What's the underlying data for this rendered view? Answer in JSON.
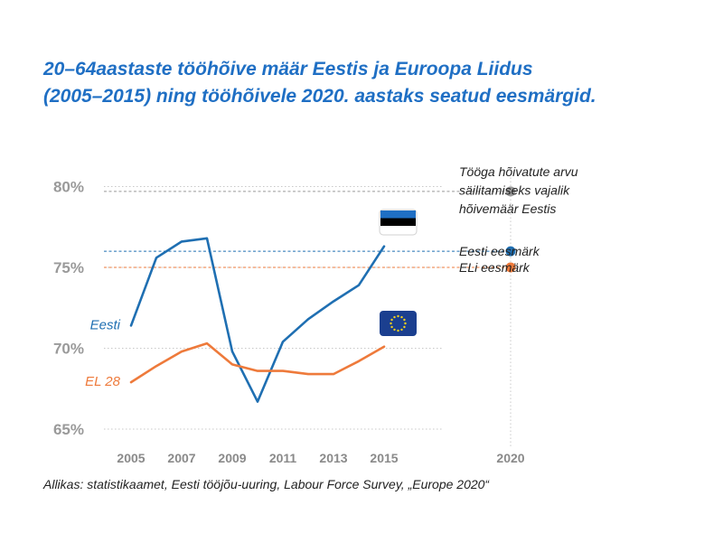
{
  "title_lines": [
    "20–64aastaste tööhõive määr Eestis ja Euroopa Liidus",
    "(2005–2015) ning tööhõivele 2020. aastaks seatud eesmärgid."
  ],
  "source": "Allikas: statistikaamet, Eesti tööjõu-uuring, Labour Force Survey, „Europe 2020“",
  "colors": {
    "eesti": "#1f6fb2",
    "el": "#ee7a3b",
    "grey": "#999999",
    "title": "#1f6fc4"
  },
  "chart_data": {
    "type": "line",
    "x": [
      2005,
      2006,
      2007,
      2008,
      2009,
      2010,
      2011,
      2012,
      2013,
      2014,
      2015
    ],
    "xticks": [
      "2005",
      "2007",
      "2009",
      "2011",
      "2013",
      "2015",
      "2020"
    ],
    "yticks": [
      "65%",
      "70%",
      "75%",
      "80%"
    ],
    "ylim": [
      65,
      80
    ],
    "xlim": [
      2005,
      2020
    ],
    "series": [
      {
        "name": "Eesti",
        "color": "#1f6fb2",
        "values": [
          71.4,
          75.6,
          76.6,
          76.8,
          69.8,
          66.7,
          70.4,
          71.8,
          72.9,
          73.9,
          76.3
        ]
      },
      {
        "name": "EL 28",
        "color": "#ee7a3b",
        "values": [
          67.9,
          68.9,
          69.8,
          70.3,
          69.0,
          68.6,
          68.6,
          68.4,
          68.4,
          69.2,
          70.1
        ]
      }
    ],
    "targets": [
      {
        "label_lines": [
          "Tööga hõivatute arvu",
          "säilitamiseks vajalik",
          "hõivemäär Eestis"
        ],
        "value": 79.7,
        "color": "#999999"
      },
      {
        "label_lines": [
          "Eesti eesmärk"
        ],
        "value": 76.0,
        "color": "#1f6fb2"
      },
      {
        "label_lines": [
          "ELi eesmärk"
        ],
        "value": 75.0,
        "color": "#ee7a3b"
      }
    ],
    "grid": true,
    "icons": {
      "estonia": "estonian-flag-icon",
      "eu": "eu-flag-icon"
    }
  }
}
